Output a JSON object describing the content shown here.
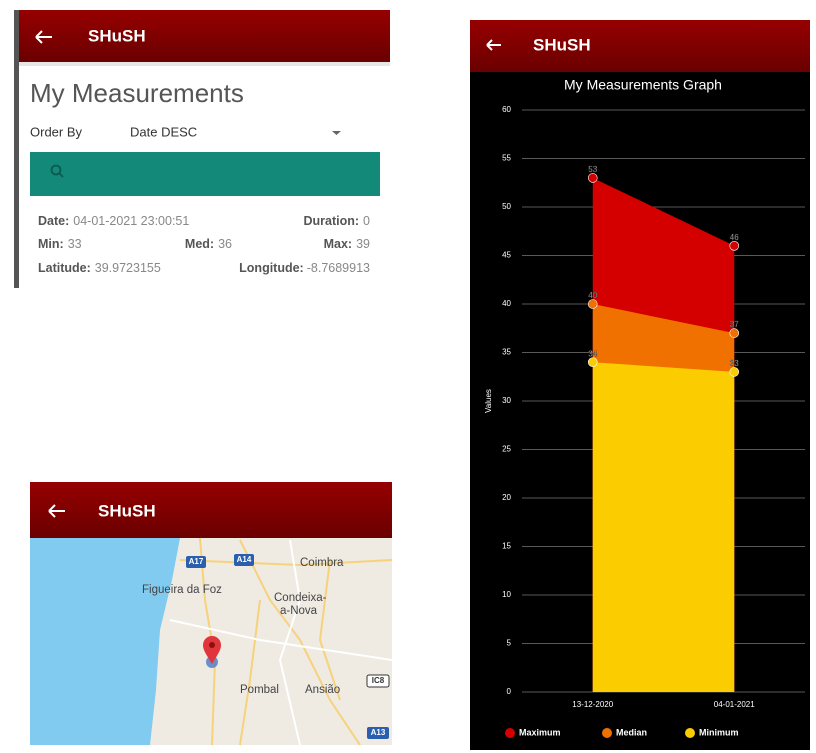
{
  "app_title": "SHuSH",
  "list_screen": {
    "title": "My Measurements",
    "order_by_label": "Order By",
    "order_by_value": "Date DESC",
    "record": {
      "date_label": "Date:",
      "date": "04-01-2021 23:00:51",
      "duration_label": "Duration:",
      "duration": 0,
      "min_label": "Min:",
      "min": 33,
      "med_label": "Med:",
      "med": 36,
      "max_label": "Max:",
      "max": 39,
      "latitude_label": "Latitude:",
      "latitude": 39.9723155,
      "longitude_label": "Longitude:",
      "longitude": -8.7689913
    }
  },
  "map_screen": {
    "labels": [
      "A17",
      "A14",
      "Coimbra",
      "Figueira da Foz",
      "Condeixa-",
      "a-Nova",
      "Pombal",
      "Ansião",
      "IC8",
      "A13"
    ]
  },
  "chart_data": {
    "type": "area",
    "title": "My Measurements Graph",
    "y_label": "Values",
    "categories": [
      "13-12-2020",
      "04-01-2021"
    ],
    "series": [
      {
        "name": "Maximum",
        "color": "#d40000",
        "values": [
          53,
          46
        ]
      },
      {
        "name": "Median",
        "color": "#f07000",
        "values": [
          40,
          37
        ]
      },
      {
        "name": "Minimum",
        "color": "#fbcc00",
        "values": [
          34,
          33
        ]
      }
    ],
    "ylim": [
      0,
      60
    ],
    "yticks": [
      0,
      5,
      10,
      15,
      20,
      25,
      30,
      35,
      40,
      45,
      50,
      55,
      60
    ],
    "grid": true,
    "legend": "bottom"
  }
}
